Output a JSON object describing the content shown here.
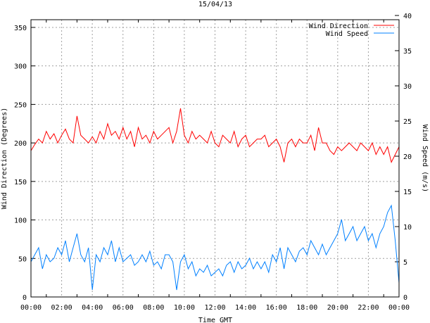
{
  "chart_data": {
    "type": "line",
    "title": "15/04/13",
    "xlabel": "Time GMT",
    "ylabel": "Wind Direction (Degrees)",
    "y2label": "Wind Speed (m/s)",
    "x_ticks": [
      "00:00",
      "02:00",
      "04:00",
      "06:00",
      "08:00",
      "10:00",
      "12:00",
      "14:00",
      "16:00",
      "18:00",
      "20:00",
      "22:00",
      "00:00"
    ],
    "y_ticks": [
      "0",
      "50",
      "100",
      "150",
      "200",
      "250",
      "300",
      "350"
    ],
    "y2_ticks": [
      "0",
      "5",
      "10",
      "15",
      "20",
      "25",
      "30",
      "35",
      "40"
    ],
    "xlim_hours": [
      0,
      24
    ],
    "ylim": [
      0,
      360
    ],
    "y2lim": [
      0,
      39.4
    ],
    "grid": true,
    "legend_position": "top-right",
    "sample_interval_minutes": 15,
    "series": [
      {
        "name": "Wind Direction",
        "axis": "left",
        "color": "#ff0000",
        "values": [
          190,
          198,
          205,
          200,
          215,
          205,
          212,
          200,
          210,
          218,
          205,
          200,
          235,
          210,
          205,
          200,
          208,
          200,
          215,
          205,
          225,
          210,
          215,
          205,
          220,
          205,
          215,
          195,
          220,
          205,
          210,
          200,
          215,
          205,
          210,
          215,
          220,
          200,
          215,
          245,
          210,
          200,
          215,
          205,
          210,
          205,
          200,
          215,
          200,
          195,
          210,
          205,
          200,
          215,
          195,
          205,
          210,
          195,
          200,
          205,
          205,
          210,
          195,
          200,
          205,
          195,
          175,
          200,
          205,
          195,
          205,
          200,
          200,
          210,
          190,
          220,
          200,
          200,
          190,
          185,
          195,
          190,
          195,
          200,
          195,
          190,
          200,
          195,
          190,
          200,
          185,
          195,
          185,
          195,
          175,
          185,
          195
        ]
      },
      {
        "name": "Wind Speed",
        "axis": "right",
        "color": "#0080ff",
        "values": [
          5,
          6,
          7,
          4,
          6,
          5,
          5.5,
          7,
          6,
          8,
          5,
          7,
          9,
          6,
          5,
          7,
          1,
          6,
          5,
          7,
          6,
          8,
          5,
          7,
          5,
          5.5,
          6,
          4.5,
          5,
          6,
          5,
          6.5,
          4.5,
          5,
          4,
          6,
          6,
          5,
          1,
          5,
          6,
          4,
          5,
          3,
          4,
          3.5,
          4.5,
          3,
          3.5,
          4,
          3,
          4.5,
          5,
          3.5,
          5,
          4,
          4.5,
          5.5,
          4,
          5,
          4,
          5,
          3.5,
          6,
          5,
          7,
          4,
          7,
          6,
          5,
          6.5,
          7,
          6,
          8,
          7,
          6,
          7.5,
          6,
          7,
          8,
          9,
          11,
          8,
          9,
          10,
          8,
          9,
          10,
          8,
          9,
          7,
          9,
          10,
          12,
          13,
          8,
          2
        ]
      }
    ]
  }
}
